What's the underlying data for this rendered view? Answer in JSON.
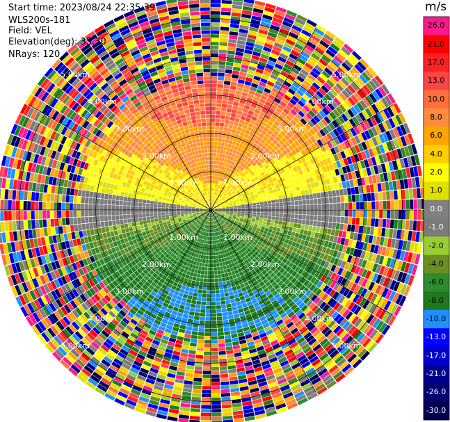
{
  "info": {
    "start_time": "Start time: 2023/08/24 22:35:39",
    "instrument": "WLS200s-181",
    "field": "Field: VEL",
    "elevation": "Elevation(deg): 35.30",
    "nrays": "NRays: 120"
  },
  "chart_data": {
    "type": "ppi",
    "field": "VEL",
    "units": "m/s",
    "nrays": 120,
    "elevation_deg": 35.3,
    "range_max_km": 5.5,
    "range_ring_labels": [
      "1.00km",
      "2.00km",
      "3.00km",
      "4.00km",
      "5.00km"
    ],
    "colorbar": {
      "title": "m/s",
      "ticks": [
        "26.0",
        "21.0",
        "17.0",
        "13.0",
        "10.0",
        "8.0",
        "6.0",
        "4.0",
        "2.0",
        "1.0",
        "0.0",
        "-1.0",
        "-2.0",
        "-4.0",
        "-6.0",
        "-8.0",
        "-10.0",
        "-13.0",
        "-17.0",
        "-21.0",
        "-26.0",
        "-30.0"
      ],
      "colors": [
        "#ff1a8c",
        "#ff0000",
        "#ff2020",
        "#ff4444",
        "#ff6f3c",
        "#ff8c3c",
        "#ffa500",
        "#ffcc00",
        "#ffff00",
        "#e0e000",
        "#808080",
        "#7a7a7a",
        "#9acd32",
        "#6b8e23",
        "#2e8b2e",
        "#1e7a1e",
        "#1e90ff",
        "#0000ff",
        "#0000cd",
        "#00008b",
        "#000070",
        "#000050"
      ]
    },
    "pattern": "Near-range structured field: positive velocities (yellow to red) toward north, negative (green to blue) toward south; beyond about 3.2 km mostly noise."
  }
}
